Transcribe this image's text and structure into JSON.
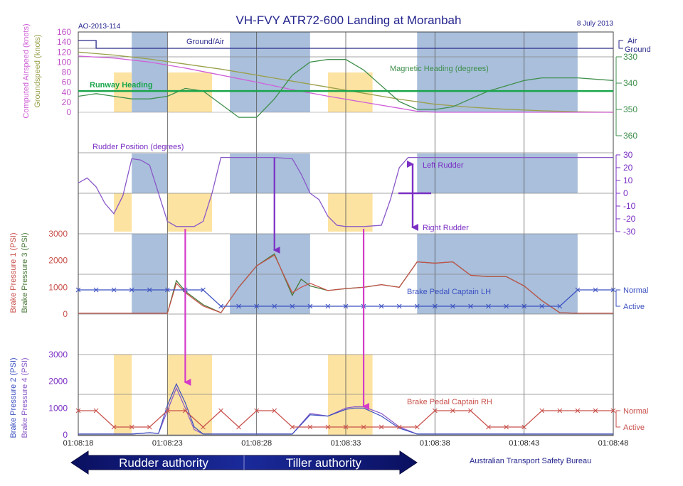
{
  "header": {
    "title": "VH-FVY ATR72-600 Landing at Moranbah",
    "report_id": "AO-2013-114",
    "date": "8 July 2013"
  },
  "footer": {
    "source": "Australian Transport Safety Bureau",
    "rudder_authority": "Rudder authority",
    "tiller_authority": "Tiller authority"
  },
  "colors": {
    "blue_band": "#a9bfdc",
    "yellow_band": "#fde3a1",
    "airspeed": "#d060d8",
    "groundspeed": "#9aa04a",
    "heading": "#3f8f4c",
    "runway": "#19a54a",
    "ground_air": "#2a2a8a",
    "rudder": "#8a58c8",
    "arrow_magenta": "#d43cc8",
    "arrow_purple": "#7b2fc4",
    "brake_red": "#c8504a",
    "brake_green": "#4a7a3a",
    "pedal_lh": "#3a4fc0",
    "pedal_rh": "#c8504a",
    "brake_purple": "#6a4fc0",
    "title": "#23238e"
  },
  "chart_data": [
    {
      "type": "line",
      "panel": "speed_heading",
      "x_range_s": [
        18,
        48
      ],
      "x_ticks": [
        "01:08:18",
        "01:08:23",
        "01:08:28",
        "01:08:33",
        "01:08:38",
        "01:08:43",
        "01:08:48"
      ],
      "left_axis": {
        "label1": "Computed Airspeed (knots)",
        "label2": "Groundspeed (knots)",
        "ticks": [
          "0",
          "20",
          "40",
          "60",
          "80",
          "100",
          "120",
          "140",
          "160"
        ],
        "range": [
          0,
          160
        ]
      },
      "right_axis": {
        "ticks": [
          "330",
          "340",
          "350",
          "360"
        ],
        "range": [
          330,
          360
        ]
      },
      "ground_air_axis": {
        "top": "Air",
        "bottom": "Ground"
      },
      "labels": {
        "ground_air": "Ground/Air",
        "heading": "Magnetic Heading (degrees)",
        "runway": "Runway Heading"
      },
      "runway_heading": 343,
      "ground_air_series": {
        "name": "Ground/Air",
        "x": [
          18,
          19,
          19,
          48
        ],
        "y": [
          1,
          1,
          0,
          0
        ]
      },
      "series": [
        {
          "name": "Computed Airspeed",
          "x": [
            18,
            20,
            22,
            24,
            26,
            28,
            30,
            32,
            34,
            36,
            37,
            38,
            40,
            42,
            44,
            46,
            48
          ],
          "y": [
            112,
            108,
            100,
            88,
            74,
            60,
            45,
            32,
            20,
            8,
            2,
            0,
            0,
            0,
            0,
            0,
            0
          ]
        },
        {
          "name": "Groundspeed",
          "x": [
            18,
            20,
            22,
            24,
            26,
            28,
            30,
            32,
            34,
            36,
            38,
            40,
            42,
            44,
            46,
            48
          ],
          "y": [
            120,
            114,
            106,
            96,
            86,
            74,
            62,
            50,
            38,
            26,
            16,
            10,
            6,
            3,
            1,
            0
          ]
        },
        {
          "name": "Magnetic Heading",
          "x": [
            18,
            19,
            20,
            21,
            22,
            23,
            24,
            25,
            26,
            27,
            28,
            29,
            30,
            31,
            32,
            33,
            34,
            35,
            36,
            37,
            38,
            39,
            40,
            41,
            42,
            43,
            44,
            45,
            46,
            48
          ],
          "y": [
            345,
            344,
            345,
            346,
            346,
            345,
            342,
            343,
            348,
            353,
            353,
            346,
            337,
            332,
            331,
            331,
            335,
            341,
            347,
            350,
            350,
            349,
            346,
            343,
            341,
            339,
            338,
            338,
            338,
            339
          ]
        }
      ]
    },
    {
      "type": "line",
      "panel": "rudder",
      "labels": {
        "rudder": "Rudder Position (degrees)",
        "left": "Left Rudder",
        "right": "Right Rudder"
      },
      "right_axis": {
        "ticks": [
          "30",
          "20",
          "10",
          "0",
          "-10",
          "-20",
          "-30"
        ],
        "range": [
          -30,
          30
        ]
      },
      "series": [
        {
          "name": "Rudder Position",
          "x": [
            18,
            18.5,
            19,
            19.5,
            20,
            20.5,
            21,
            21.5,
            22,
            22.5,
            23,
            23.5,
            24,
            24.5,
            25,
            25.5,
            26,
            26.5,
            27,
            28,
            29,
            30,
            30.5,
            31,
            31.5,
            32,
            32.5,
            33,
            34,
            35,
            35.5,
            36,
            36.5,
            37,
            38,
            48
          ],
          "y": [
            8,
            12,
            5,
            -8,
            -16,
            -2,
            27,
            26,
            22,
            0,
            -22,
            -26,
            -26,
            -26,
            -22,
            0,
            28,
            28,
            28,
            28,
            28,
            27,
            15,
            0,
            -5,
            -18,
            -25,
            -26,
            -26,
            -25,
            -5,
            20,
            28,
            28,
            28,
            28
          ]
        }
      ]
    },
    {
      "type": "line",
      "panel": "brakes_1_3",
      "left_axis": {
        "label1": "Brake Pressure 1 (PSI)",
        "label2": "Brake Pressure 3 (PSI)",
        "ticks": [
          "0",
          "1000",
          "2000",
          "3000"
        ],
        "range": [
          0,
          3000
        ]
      },
      "pedal_axis": {
        "top": "Normal",
        "bottom": "Active"
      },
      "labels": {
        "pedal": "Brake Pedal Captain LH"
      },
      "pedal_series": {
        "name": "Brake Pedal Captain LH",
        "x": [
          18,
          19,
          20,
          21,
          22,
          23,
          24,
          25,
          26,
          27,
          28,
          29,
          30,
          31,
          32,
          33,
          34,
          35,
          36,
          37,
          38,
          39,
          40,
          41,
          42,
          43,
          44,
          45,
          46,
          47,
          48
        ],
        "y": [
          1,
          1,
          1,
          1,
          1,
          1,
          1,
          1,
          0,
          0,
          0,
          0,
          0,
          0,
          0,
          0,
          0,
          0,
          0,
          0,
          0,
          0,
          0,
          0,
          0,
          0,
          0,
          0,
          1,
          1,
          1
        ]
      },
      "series": [
        {
          "name": "Brake Pressure 1",
          "x": [
            18,
            20,
            22,
            23,
            23.5,
            24,
            25,
            26,
            27,
            28,
            29,
            30,
            30.5,
            31,
            32,
            33,
            34,
            35,
            36,
            37,
            38,
            39,
            40,
            41,
            42,
            43,
            44,
            45,
            46,
            48
          ],
          "y": [
            30,
            30,
            30,
            30,
            1150,
            800,
            300,
            50,
            1000,
            1800,
            2200,
            800,
            1000,
            1150,
            880,
            950,
            1000,
            1100,
            1000,
            1950,
            1900,
            1950,
            1450,
            1400,
            1400,
            1050,
            500,
            50,
            30,
            30
          ]
        },
        {
          "name": "Brake Pressure 3",
          "x": [
            18,
            20,
            22,
            23,
            23.5,
            24,
            25,
            26,
            27,
            28,
            29,
            30,
            30.5,
            31,
            32,
            33,
            34,
            35,
            36,
            37,
            38,
            39,
            40,
            41,
            42,
            43,
            44,
            45,
            46,
            48
          ],
          "y": [
            30,
            30,
            30,
            30,
            1250,
            850,
            350,
            50,
            1000,
            1800,
            2250,
            700,
            1300,
            1050,
            880,
            950,
            1000,
            1100,
            1000,
            1950,
            1900,
            1950,
            1450,
            1400,
            1400,
            1050,
            500,
            50,
            30,
            30
          ]
        }
      ]
    },
    {
      "type": "line",
      "panel": "brakes_2_4",
      "left_axis": {
        "label1": "Brake Pressure 2 (PSI)",
        "label2": "Brake Pressure 4 (PSI)",
        "ticks": [
          "0",
          "1000",
          "2000",
          "3000"
        ],
        "range": [
          0,
          3000
        ]
      },
      "pedal_axis": {
        "top": "Normal",
        "bottom": "Active"
      },
      "labels": {
        "pedal": "Brake Pedal Captain RH"
      },
      "pedal_series": {
        "name": "Brake Pedal Captain RH",
        "x": [
          18,
          19,
          20,
          21,
          22,
          23,
          24,
          25,
          26,
          27,
          28,
          29,
          30,
          31,
          32,
          33,
          34,
          35,
          36,
          37,
          38,
          39,
          40,
          41,
          42,
          43,
          44,
          45,
          46,
          47,
          48
        ],
        "y": [
          1,
          1,
          0,
          0,
          0,
          1,
          1,
          0,
          1,
          0,
          1,
          1,
          0,
          0,
          0,
          0,
          0,
          0,
          0,
          0,
          1,
          1,
          1,
          0,
          0,
          0,
          1,
          1,
          1,
          1,
          1
        ]
      },
      "series": [
        {
          "name": "Brake Pressure 2",
          "x": [
            18,
            21,
            22,
            22.5,
            23,
            23.5,
            24,
            24.5,
            25,
            30,
            31,
            32,
            33,
            33.5,
            34,
            35,
            36,
            37,
            38,
            48
          ],
          "y": [
            30,
            30,
            80,
            50,
            1100,
            1900,
            1200,
            300,
            30,
            30,
            750,
            700,
            950,
            1000,
            1000,
            700,
            250,
            30,
            30,
            30
          ]
        },
        {
          "name": "Brake Pressure 4",
          "x": [
            18,
            21,
            22,
            22.5,
            23,
            23.5,
            24,
            24.5,
            25,
            30,
            31,
            32,
            33,
            33.5,
            34,
            35,
            36,
            37,
            38,
            48
          ],
          "y": [
            30,
            30,
            80,
            50,
            900,
            1750,
            1000,
            200,
            30,
            30,
            800,
            700,
            1000,
            1050,
            1050,
            800,
            300,
            30,
            30,
            30
          ]
        }
      ]
    }
  ],
  "bands": {
    "blue": [
      [
        21,
        23
      ],
      [
        26.5,
        31
      ],
      [
        37,
        46
      ]
    ],
    "yellow_top": [
      [
        20,
        21
      ],
      [
        23,
        25.5
      ],
      [
        32,
        34.5
      ]
    ],
    "yellow_bottom": [
      [
        20,
        21
      ],
      [
        23,
        25.5
      ],
      [
        32,
        34.5
      ]
    ]
  },
  "arrows": [
    {
      "x": 24,
      "from": "rudder",
      "to": "brakes_2_4",
      "color": "magenta"
    },
    {
      "x": 29,
      "from": "rudder",
      "to": "brakes_1_3",
      "color": "purple"
    },
    {
      "x": 34,
      "from": "rudder",
      "to": "brakes_2_4",
      "color": "magenta"
    }
  ]
}
